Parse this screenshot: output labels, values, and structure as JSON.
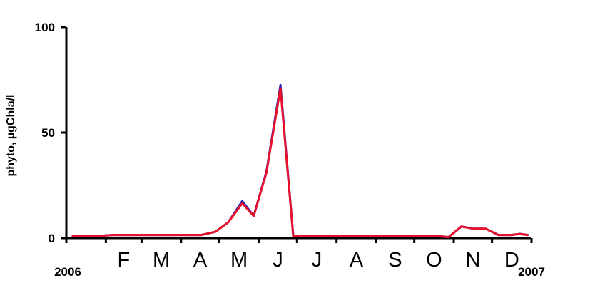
{
  "chart_data": {
    "type": "line",
    "title": "",
    "ylabel": "phyto, µgChla/l",
    "ylim": [
      0,
      100
    ],
    "yticks": [
      0,
      50,
      100
    ],
    "grid": false,
    "xrange": [
      "2006-01-01",
      "2007-01-01"
    ],
    "year_labels": {
      "start": "2006",
      "end": "2007"
    },
    "month_labels": [
      "F",
      "M",
      "A",
      "M",
      "J",
      "J",
      "A",
      "S",
      "O",
      "N",
      "D"
    ],
    "series": [
      {
        "color": "#2020c0",
        "points": [
          [
            "2006-01-06",
            1
          ],
          [
            "2006-01-16",
            1
          ],
          [
            "2006-01-26",
            1
          ],
          [
            "2006-02-06",
            1.5
          ],
          [
            "2006-02-20",
            1.5
          ],
          [
            "2006-03-06",
            1.5
          ],
          [
            "2006-03-20",
            1.5
          ],
          [
            "2006-04-03",
            1.5
          ],
          [
            "2006-04-17",
            1.5
          ],
          [
            "2006-04-28",
            3
          ],
          [
            "2006-05-08",
            7.5
          ],
          [
            "2006-05-19",
            17.5
          ],
          [
            "2006-05-28",
            10.5
          ],
          [
            "2006-06-07",
            31.5
          ],
          [
            "2006-06-18",
            72.5
          ],
          [
            "2006-06-28",
            1
          ],
          [
            "2006-07-15",
            1
          ],
          [
            "2006-08-01",
            1
          ],
          [
            "2006-08-20",
            1
          ],
          [
            "2006-09-05",
            1
          ],
          [
            "2006-09-20",
            1
          ],
          [
            "2006-10-05",
            1
          ],
          [
            "2006-10-18",
            1
          ],
          [
            "2006-10-28",
            0.5
          ],
          [
            "2006-11-07",
            5.5
          ],
          [
            "2006-11-16",
            4.5
          ],
          [
            "2006-11-26",
            4.5
          ],
          [
            "2006-12-06",
            1.5
          ],
          [
            "2006-12-16",
            1.5
          ],
          [
            "2006-12-23",
            2
          ],
          [
            "2006-12-29",
            1.5
          ]
        ]
      },
      {
        "color": "#e8102a",
        "points": [
          [
            "2006-01-06",
            1
          ],
          [
            "2006-01-16",
            1
          ],
          [
            "2006-01-26",
            1
          ],
          [
            "2006-02-06",
            1.5
          ],
          [
            "2006-02-20",
            1.5
          ],
          [
            "2006-03-06",
            1.5
          ],
          [
            "2006-03-20",
            1.5
          ],
          [
            "2006-04-03",
            1.5
          ],
          [
            "2006-04-17",
            1.5
          ],
          [
            "2006-04-28",
            3
          ],
          [
            "2006-05-08",
            7.5
          ],
          [
            "2006-05-19",
            16.5
          ],
          [
            "2006-05-28",
            10.5
          ],
          [
            "2006-06-07",
            31
          ],
          [
            "2006-06-18",
            71
          ],
          [
            "2006-06-28",
            1
          ],
          [
            "2006-07-15",
            1
          ],
          [
            "2006-08-01",
            1
          ],
          [
            "2006-08-20",
            1
          ],
          [
            "2006-09-05",
            1
          ],
          [
            "2006-09-20",
            1
          ],
          [
            "2006-10-05",
            1
          ],
          [
            "2006-10-18",
            1
          ],
          [
            "2006-10-28",
            0.5
          ],
          [
            "2006-11-07",
            5.5
          ],
          [
            "2006-11-16",
            4.5
          ],
          [
            "2006-11-26",
            4.5
          ],
          [
            "2006-12-06",
            1.5
          ],
          [
            "2006-12-16",
            1.5
          ],
          [
            "2006-12-23",
            2
          ],
          [
            "2006-12-29",
            1.5
          ]
        ]
      }
    ]
  }
}
